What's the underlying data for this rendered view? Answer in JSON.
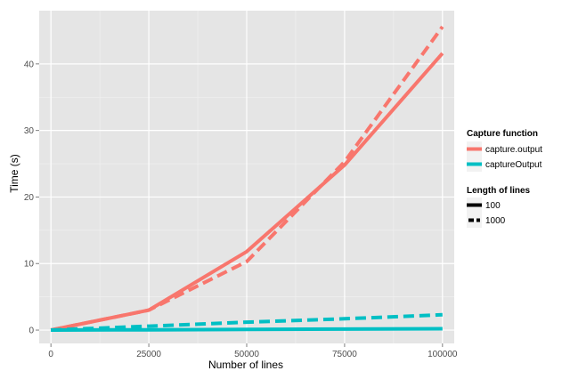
{
  "chart_data": {
    "type": "line",
    "title": "",
    "xlabel": "Number of lines",
    "ylabel": "Time (s)",
    "xlim": [
      -3000,
      103000
    ],
    "ylim": [
      -2,
      48
    ],
    "x_ticks": [
      0,
      25000,
      50000,
      75000,
      100000
    ],
    "x_tick_labels": [
      "0",
      "25000",
      "50000",
      "75000",
      "100000"
    ],
    "y_ticks": [
      0,
      10,
      20,
      30,
      40
    ],
    "y_tick_labels": [
      "0",
      "10",
      "20",
      "30",
      "40"
    ],
    "grid": true,
    "colors": {
      "capture.output": "#f8766d",
      "captureOutput": "#00bfc4",
      "panel": "#e5e5e5",
      "grid": "#ffffff"
    },
    "series": [
      {
        "function": "capture.output",
        "length": "100",
        "linetype": "solid",
        "x": [
          0,
          25000,
          50000,
          75000,
          100000
        ],
        "y": [
          0,
          3.0,
          11.8,
          24.8,
          41.6
        ]
      },
      {
        "function": "capture.output",
        "length": "1000",
        "linetype": "dashed",
        "x": [
          0,
          25000,
          50000,
          75000,
          100000
        ],
        "y": [
          0,
          3.0,
          10.3,
          25.3,
          45.6
        ]
      },
      {
        "function": "captureOutput",
        "length": "100",
        "linetype": "solid",
        "x": [
          0,
          25000,
          50000,
          75000,
          100000
        ],
        "y": [
          0,
          0.05,
          0.1,
          0.15,
          0.2
        ]
      },
      {
        "function": "captureOutput",
        "length": "1000",
        "linetype": "dashed",
        "x": [
          0,
          25000,
          50000,
          75000,
          100000
        ],
        "y": [
          0,
          0.6,
          1.2,
          1.7,
          2.3
        ]
      }
    ],
    "legend_placement": "right",
    "legend": {
      "color_title": "Capture function",
      "color_items": [
        {
          "label": "capture.output",
          "color": "#f8766d"
        },
        {
          "label": "captureOutput",
          "color": "#00bfc4"
        }
      ],
      "linetype_title": "Length of lines",
      "linetype_items": [
        {
          "label": "100",
          "linetype": "solid"
        },
        {
          "label": "1000",
          "linetype": "dashed"
        }
      ]
    }
  }
}
